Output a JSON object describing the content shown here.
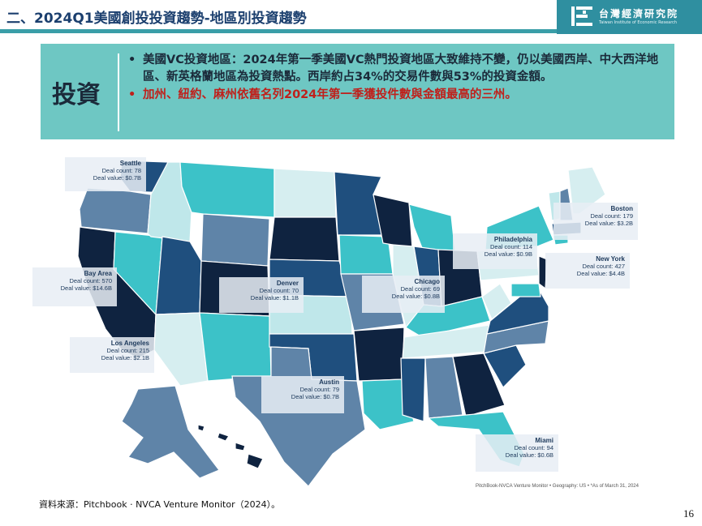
{
  "header": {
    "title": "二、2024Q1美國創投投資趨勢-地區別投資趨勢",
    "logo_cn": "台灣經濟研究院",
    "logo_en": "Taiwan Institute of Economic Research"
  },
  "summary": {
    "label": "投資",
    "bullet1": "美國VC投資地區：2024年第一季美國VC熱門投資地區大致維持不變，仍以美國西岸、中大西洋地區、新英格蘭地區為投資熱點。西岸約占34%的交易件數與53%的投資金額。",
    "bullet2": "加州、紐約、麻州依舊名列2024年第一季獲投件數與金額最高的三州。",
    "bullet_symbol": "•"
  },
  "map": {
    "callouts": {
      "seattle": {
        "city": "Seattle",
        "count": "Deal count: 78",
        "value": "Deal value: $0.7B"
      },
      "bayarea": {
        "city": "Bay Area",
        "count": "Deal count: 570",
        "value": "Deal value: $14.6B"
      },
      "losangeles": {
        "city": "Los Angeles",
        "count": "Deal count: 215",
        "value": "Deal value: $2.1B"
      },
      "denver": {
        "city": "Denver",
        "count": "Deal count: 70",
        "value": "Deal value: $1.1B"
      },
      "austin": {
        "city": "Austin",
        "count": "Deal count: 79",
        "value": "Deal value: $0.7B"
      },
      "chicago": {
        "city": "Chicago",
        "count": "Deal count: 69",
        "value": "Deal value: $0.8B"
      },
      "philadelphia": {
        "city": "Philadelphia",
        "count": "Deal count: 114",
        "value": "Deal value: $0.9B"
      },
      "boston": {
        "city": "Boston",
        "count": "Deal count: 179",
        "value": "Deal value: $3.2B"
      },
      "newyork": {
        "city": "New York",
        "count": "Deal count: 427",
        "value": "Deal value: $4.4B"
      },
      "miami": {
        "city": "Miami",
        "count": "Deal count: 94",
        "value": "Deal value: $0.6B"
      }
    },
    "credit": "PitchBook-NVCA Venture Monitor • Geography: US • *As of March 31, 2024",
    "colors": {
      "darkest": "#0f2340",
      "dark": "#1f4f7e",
      "mid": "#5f84a8",
      "teal": "#3cc2c8",
      "light": "#bfe7ea",
      "pale": "#d6eef0"
    }
  },
  "footer": {
    "source": "資料來源：Pitchbook · NVCA Venture Monitor（2024）。",
    "page": "16"
  }
}
